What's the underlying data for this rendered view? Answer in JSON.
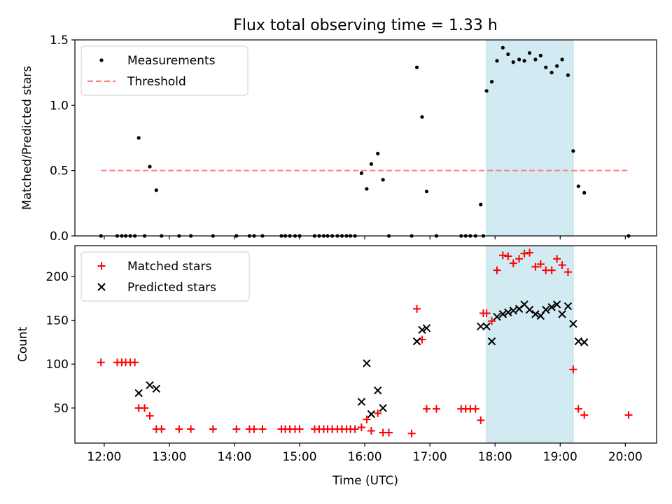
{
  "chart_data": [
    {
      "type": "scatter",
      "title": "Flux total observing time = 1.33 h",
      "xlabel": "",
      "ylabel": "Matched/Predicted stars",
      "xlim": [
        11.55,
        20.48
      ],
      "ylim": [
        0,
        1.5
      ],
      "yticks": [
        0,
        0.5,
        1.0,
        1.5
      ],
      "ytick_labels": [
        "0.0",
        "0.5",
        "1.0",
        "1.5"
      ],
      "highlight_span": [
        17.87,
        19.2
      ],
      "highlight_color": "#add8e6",
      "legend_position": "upper left",
      "threshold": {
        "name": "Threshold",
        "y": 0.5,
        "x": [
          11.95,
          20.05
        ],
        "color": "#ff8080"
      },
      "series": [
        {
          "name": "Measurements",
          "color": "#000000",
          "marker": "dot",
          "x": [
            11.95,
            12.2,
            12.27,
            12.33,
            12.4,
            12.47,
            12.53,
            12.62,
            12.7,
            12.8,
            12.88,
            13.15,
            13.33,
            13.67,
            14.03,
            14.23,
            14.3,
            14.43,
            14.72,
            14.78,
            14.85,
            14.93,
            15.0,
            15.23,
            15.3,
            15.37,
            15.43,
            15.5,
            15.58,
            15.65,
            15.72,
            15.78,
            15.85,
            15.95,
            16.03,
            16.1,
            16.2,
            16.28,
            16.37,
            16.72,
            16.8,
            16.88,
            16.95,
            17.1,
            17.48,
            17.55,
            17.62,
            17.7,
            17.78,
            17.82,
            17.87,
            17.95,
            18.03,
            18.12,
            18.2,
            18.28,
            18.37,
            18.45,
            18.53,
            18.62,
            18.7,
            18.78,
            18.87,
            18.95,
            19.03,
            19.12,
            19.2,
            19.28,
            19.37,
            20.05
          ],
          "y": [
            0,
            0,
            0,
            0,
            0,
            0,
            0.75,
            0,
            0.53,
            0.35,
            0,
            0,
            0,
            0,
            0,
            0,
            0,
            0,
            0,
            0,
            0,
            0,
            0,
            0,
            0,
            0,
            0,
            0,
            0,
            0,
            0,
            0,
            0,
            0.48,
            0.36,
            0.55,
            0.63,
            0.43,
            0,
            0,
            1.29,
            0.91,
            0.34,
            0,
            0,
            0,
            0,
            0,
            0.24,
            0,
            1.11,
            1.18,
            1.34,
            1.44,
            1.39,
            1.33,
            1.35,
            1.34,
            1.4,
            1.35,
            1.38,
            1.29,
            1.25,
            1.3,
            1.35,
            1.23,
            0.65,
            0.38,
            0.33,
            0
          ]
        }
      ]
    },
    {
      "type": "scatter",
      "title": "",
      "xlabel": "Time (UTC)",
      "ylabel": "Count",
      "xlim": [
        11.55,
        20.48
      ],
      "ylim": [
        10,
        235
      ],
      "yticks": [
        50,
        100,
        150,
        200
      ],
      "ytick_labels": [
        "50",
        "100",
        "150",
        "200"
      ],
      "xticks": [
        12,
        13,
        14,
        15,
        16,
        17,
        18,
        19,
        20
      ],
      "xtick_labels": [
        "12:00",
        "13:00",
        "14:00",
        "15:00",
        "16:00",
        "17:00",
        "18:00",
        "19:00",
        "20:00"
      ],
      "highlight_span": [
        17.87,
        19.2
      ],
      "highlight_color": "#add8e6",
      "legend_position": "upper left",
      "series": [
        {
          "name": "Matched stars",
          "color": "#ff0000",
          "marker": "plus",
          "x": [
            11.95,
            12.2,
            12.27,
            12.33,
            12.4,
            12.47,
            12.53,
            12.62,
            12.7,
            12.8,
            12.88,
            13.15,
            13.33,
            13.67,
            14.03,
            14.23,
            14.3,
            14.43,
            14.72,
            14.78,
            14.85,
            14.93,
            15.0,
            15.23,
            15.3,
            15.37,
            15.43,
            15.5,
            15.58,
            15.65,
            15.72,
            15.78,
            15.85,
            15.95,
            16.03,
            16.1,
            16.2,
            16.28,
            16.37,
            16.72,
            16.8,
            16.88,
            16.95,
            17.1,
            17.48,
            17.55,
            17.62,
            17.7,
            17.78,
            17.82,
            17.87,
            17.95,
            18.03,
            18.12,
            18.2,
            18.28,
            18.37,
            18.45,
            18.53,
            18.62,
            18.7,
            18.78,
            18.87,
            18.95,
            19.03,
            19.12,
            19.2,
            19.28,
            19.37,
            20.05
          ],
          "y": [
            102,
            102,
            102,
            102,
            102,
            102,
            50,
            50,
            41,
            26,
            26,
            26,
            26,
            26,
            26,
            26,
            26,
            26,
            26,
            26,
            26,
            26,
            26,
            26,
            26,
            26,
            26,
            26,
            26,
            26,
            26,
            26,
            26,
            28,
            37,
            24,
            44,
            22,
            22,
            21,
            163,
            128,
            49,
            49,
            49,
            49,
            49,
            49,
            36,
            158,
            158,
            149,
            207,
            224,
            223,
            215,
            220,
            226,
            227,
            211,
            214,
            207,
            207,
            220,
            213,
            205,
            94,
            49,
            42,
            42
          ]
        },
        {
          "name": "Predicted stars",
          "color": "#000000",
          "marker": "x",
          "x": [
            12.53,
            12.7,
            12.8,
            15.95,
            16.03,
            16.1,
            16.2,
            16.28,
            16.8,
            16.88,
            16.95,
            17.78,
            17.87,
            17.95,
            18.03,
            18.12,
            18.2,
            18.28,
            18.37,
            18.45,
            18.53,
            18.62,
            18.7,
            18.78,
            18.87,
            18.95,
            19.03,
            19.12,
            19.2,
            19.28,
            19.37
          ],
          "y": [
            67,
            76,
            72,
            57,
            101,
            43,
            70,
            50,
            126,
            139,
            141,
            143,
            143,
            126,
            154,
            157,
            159,
            161,
            163,
            168,
            162,
            157,
            155,
            162,
            165,
            168,
            157,
            166,
            146,
            126,
            125
          ]
        }
      ]
    }
  ]
}
